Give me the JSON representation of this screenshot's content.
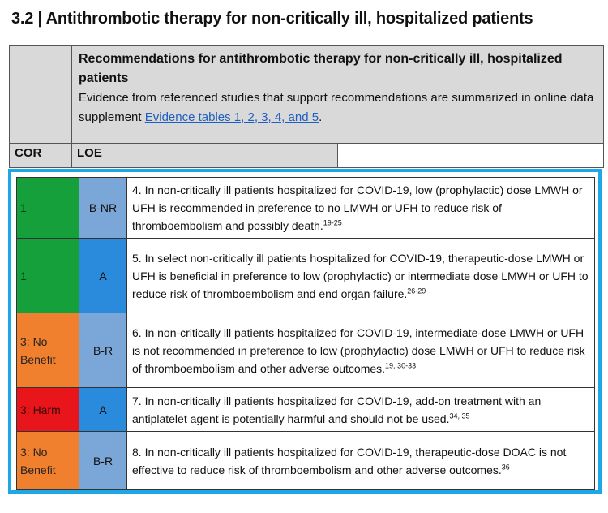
{
  "section_title": "3.2 | Antithrombotic therapy for non-critically ill, hospitalized patients",
  "header": {
    "heading": "Recommendations for antithrombotic therapy for non-critically ill, hospitalized patients",
    "evidence_text": " Evidence from referenced studies that support recommendations are summarized in online data supplement",
    "evidence_link": "Evidence tables 1, 2, 3, 4, and 5",
    "evidence_end": ".",
    "col_cor": "COR",
    "col_loe": "LOE"
  },
  "recommendations": [
    {
      "cor": "1",
      "loe": "B-NR",
      "cor_color": "#15a03c",
      "loe_color": "#7ba7d8",
      "text": "4. In non-critically ill patients hospitalized for COVID-19, low (prophylactic) dose LMWH or UFH is recommended in preference to no LMWH or UFH to reduce risk of thromboembolism and possibly death.",
      "refs": "19-25"
    },
    {
      "cor": "1",
      "loe": "A",
      "cor_color": "#15a03c",
      "loe_color": "#2a8bdc",
      "text": "5. In select non-critically ill patients hospitalized for COVID-19, therapeutic-dose LMWH or UFH is beneficial in preference to low (prophylactic) or intermediate dose LMWH or UFH to reduce risk of thromboembolism and end organ failure.",
      "refs": "26-29"
    },
    {
      "cor": "3: No Benefit",
      "loe": "B-R",
      "cor_color": "#f0802e",
      "loe_color": "#7ba7d8",
      "text": "6. In non-critically ill patients hospitalized for COVID-19, intermediate-dose LMWH or UFH is not recommended in preference to low (prophylactic) dose LMWH or UFH to reduce risk of thromboembolism and other adverse outcomes.",
      "refs": "19, 30-33"
    },
    {
      "cor": "3: Harm",
      "loe": "A",
      "cor_color": "#e8161b",
      "loe_color": "#2a8bdc",
      "text": "7. In non-critically ill patients hospitalized for COVID-19, add-on treatment with an antiplatelet agent is potentially harmful and should not be used.",
      "refs": "34, 35"
    },
    {
      "cor": "3: No Benefit",
      "loe": "B-R",
      "cor_color": "#f0802e",
      "loe_color": "#7ba7d8",
      "text": "8. In non-critically ill patients hospitalized for COVID-19, therapeutic-dose DOAC is not effective to reduce risk of thromboembolism and other adverse outcomes.",
      "refs": "36"
    }
  ],
  "frame_color": "#1ea7e6"
}
